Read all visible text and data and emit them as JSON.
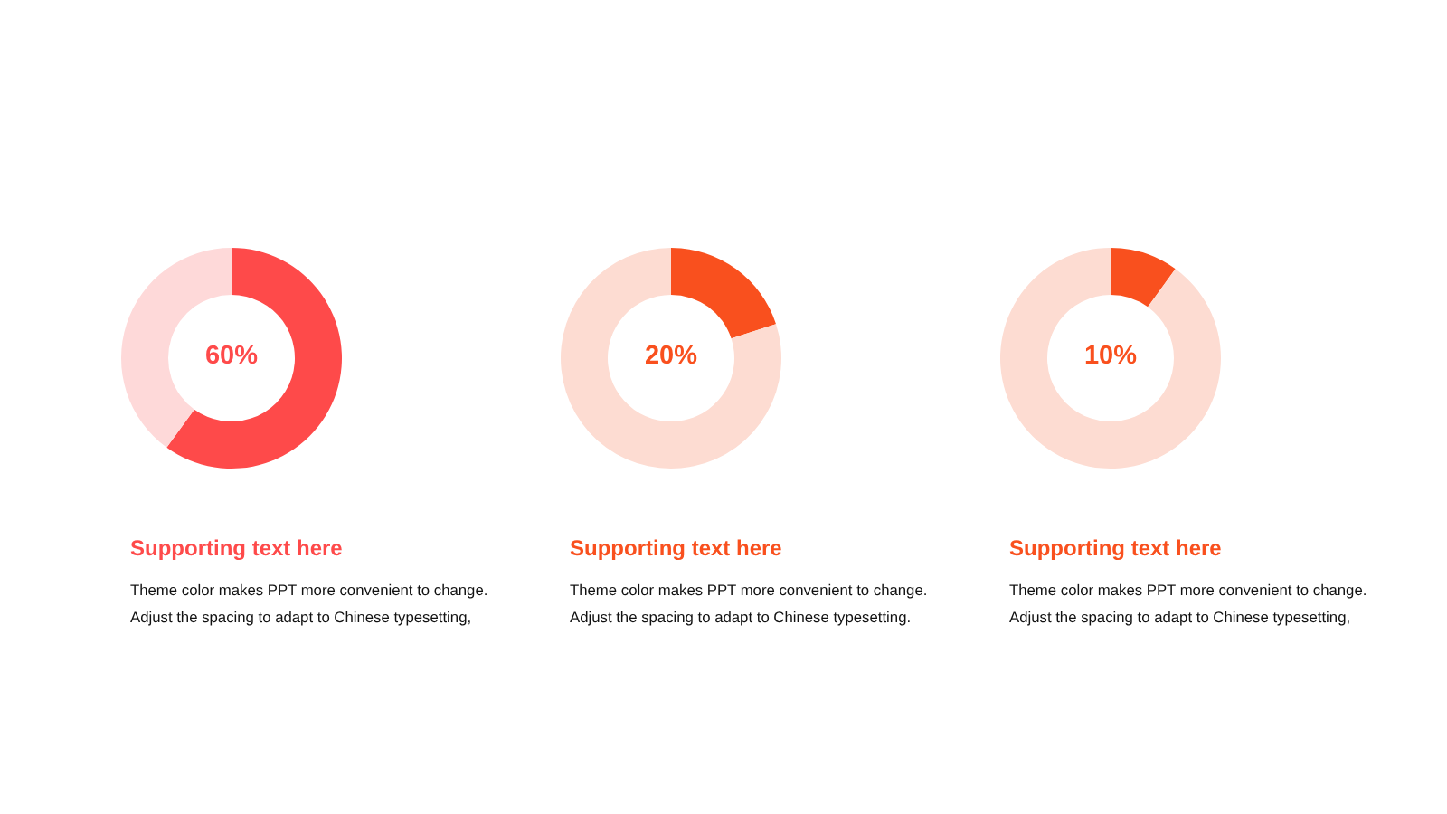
{
  "chart_data": [
    {
      "type": "donut",
      "title": "Supporting text here",
      "categories": [
        null,
        null
      ],
      "values": [
        60,
        40
      ],
      "colors": [
        "#fe4a4a",
        "#fed9d9"
      ],
      "annotations": [
        "60%",
        "Theme color makes PPT more convenient to change.",
        "Adjust the spacing to adapt to Chinese typesetting,"
      ]
    },
    {
      "type": "donut",
      "title": "Supporting text here",
      "categories": [
        null,
        null
      ],
      "values": [
        20,
        80
      ],
      "colors": [
        "#f9501e",
        "#fddcd2"
      ],
      "annotations": [
        "20%",
        "Theme color makes PPT more convenient to change.",
        "Adjust the spacing to adapt to Chinese typesetting."
      ]
    },
    {
      "type": "donut",
      "title": "Supporting text here",
      "categories": [
        null,
        null
      ],
      "values": [
        10,
        90
      ],
      "colors": [
        "#f9501e",
        "#fddcd2"
      ],
      "annotations": [
        "10%",
        "Theme color makes PPT more convenient to change.",
        "Adjust the spacing to adapt to Chinese typesetting,"
      ]
    }
  ]
}
